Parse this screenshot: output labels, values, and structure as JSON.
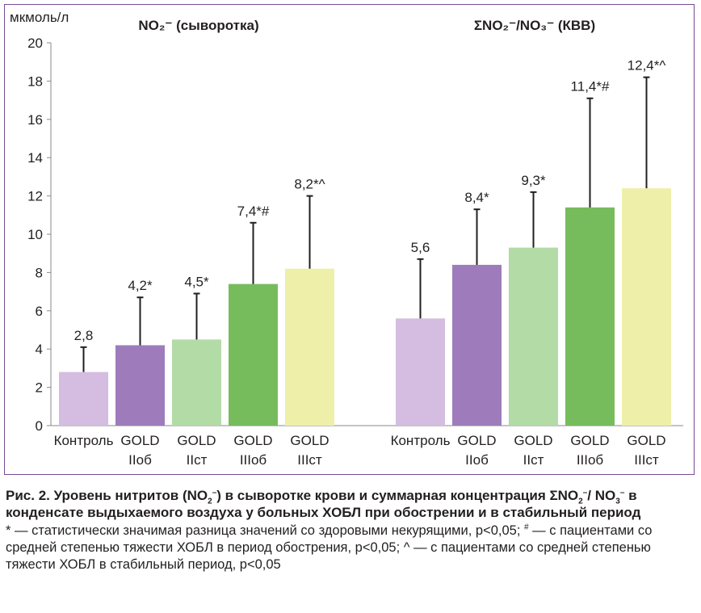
{
  "chart_data": {
    "type": "bar",
    "y_unit": "мкмоль/л",
    "ylim": [
      0,
      20
    ],
    "y_ticks": [
      "0",
      "2",
      "4",
      "6",
      "8",
      "10",
      "12",
      "14",
      "16",
      "18",
      "20"
    ],
    "error_bars": true,
    "grid": false,
    "panels": [
      {
        "title": "NO₂⁻ (сыворотка)",
        "categories": [
          "Контроль",
          "GOLD IIоб",
          "GOLD IIст",
          "GOLD IIIоб",
          "GOLD IIIст"
        ],
        "category_lines": [
          [
            "Контроль"
          ],
          [
            "GOLD",
            "IIоб"
          ],
          [
            "GOLD",
            "IIст"
          ],
          [
            "GOLD",
            "IIIоб"
          ],
          [
            "GOLD",
            "IIIст"
          ]
        ],
        "values": [
          2.8,
          4.2,
          4.5,
          7.4,
          8.2
        ],
        "error_upper": [
          4.1,
          6.7,
          6.9,
          10.6,
          12.0
        ],
        "value_labels": [
          "2,8",
          "4,2*",
          "4,5*",
          "7,4*#",
          "8,2*^"
        ]
      },
      {
        "title": "ΣNO₂⁻/NO₃⁻ (КВВ)",
        "categories": [
          "Контроль",
          "GOLD IIоб",
          "GOLD IIст",
          "GOLD IIIоб",
          "GOLD IIIст"
        ],
        "category_lines": [
          [
            "Контроль"
          ],
          [
            "GOLD",
            "IIоб"
          ],
          [
            "GOLD",
            "IIст"
          ],
          [
            "GOLD",
            "IIIоб"
          ],
          [
            "GOLD",
            "IIIст"
          ]
        ],
        "values": [
          5.6,
          8.4,
          9.3,
          11.4,
          12.4
        ],
        "error_upper": [
          8.7,
          11.3,
          12.2,
          17.1,
          18.2
        ],
        "value_labels": [
          "5,6",
          "8,4*",
          "9,3*",
          "11,4*#",
          "12,4*^"
        ]
      }
    ],
    "bar_colors": [
      "#d4bde0",
      "#9e7cbb",
      "#b3dba6",
      "#76bc5c",
      "#eef0a9"
    ]
  },
  "caption": {
    "title_part1": "Рис. 2. Уровень нитритов (NO",
    "title_part2": ") в сыворотке крови и суммарная концентрация ΣNO",
    "title_part3": "/",
    "title_part4": "NO",
    "title_part5": " в конденсате выдыхаемого воздуха у больных ХОБЛ при обострении и в стабильный период",
    "sub2": "2",
    "sub3": "3",
    "sup_minus": "–",
    "note_part1": "* — статистически значимая разница значений со здоровыми некурящими, p<0,05; ",
    "note_hash": "#",
    "note_part2": " — с пациентами со средней степенью тяжести ХОБЛ в период обострения, p<0,05; ^ — с пациентами со средней степенью тяжести ХОБЛ в стабильный период, p<0,05"
  }
}
